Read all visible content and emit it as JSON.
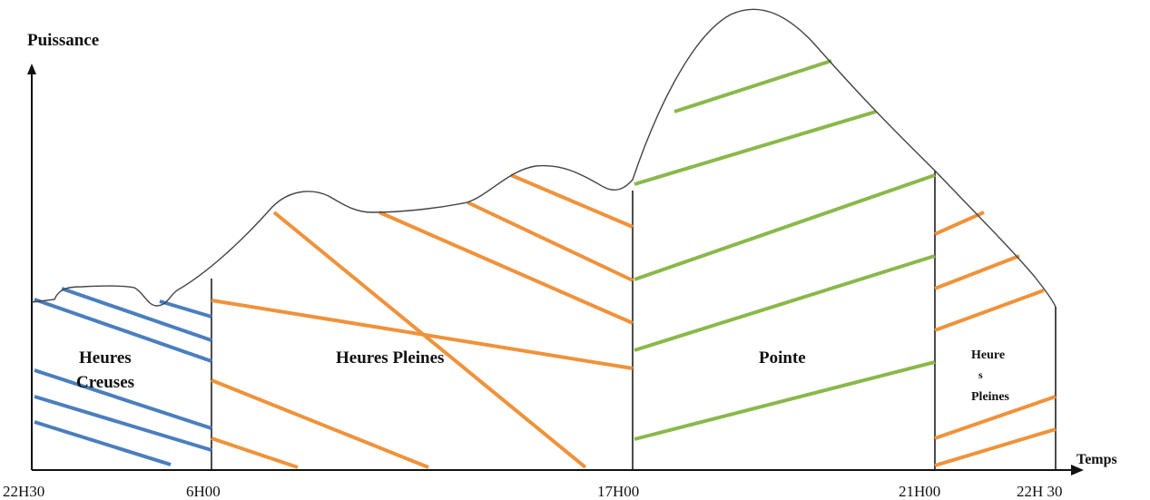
{
  "axes": {
    "y_label": "Puissance",
    "x_label": "Temps"
  },
  "x_ticks": [
    "22H30",
    "6H00",
    "17H00",
    "21H00",
    "22H 30"
  ],
  "periods": [
    {
      "id": "creuses",
      "label_lines": [
        "Heures",
        "Creuses"
      ],
      "hatch_color": "#4a7ebf"
    },
    {
      "id": "pleines1",
      "label_lines": [
        "Heures Pleines"
      ],
      "hatch_color": "#f0923a"
    },
    {
      "id": "pointe",
      "label_lines": [
        "Pointe"
      ],
      "hatch_color": "#8ab84a"
    },
    {
      "id": "pleines2",
      "label_lines": [
        "Heure",
        "s",
        "Pleines"
      ],
      "hatch_color": "#f0923a"
    }
  ],
  "colors": {
    "curve": "#444444",
    "axis": "#111111",
    "divider": "#111111"
  }
}
